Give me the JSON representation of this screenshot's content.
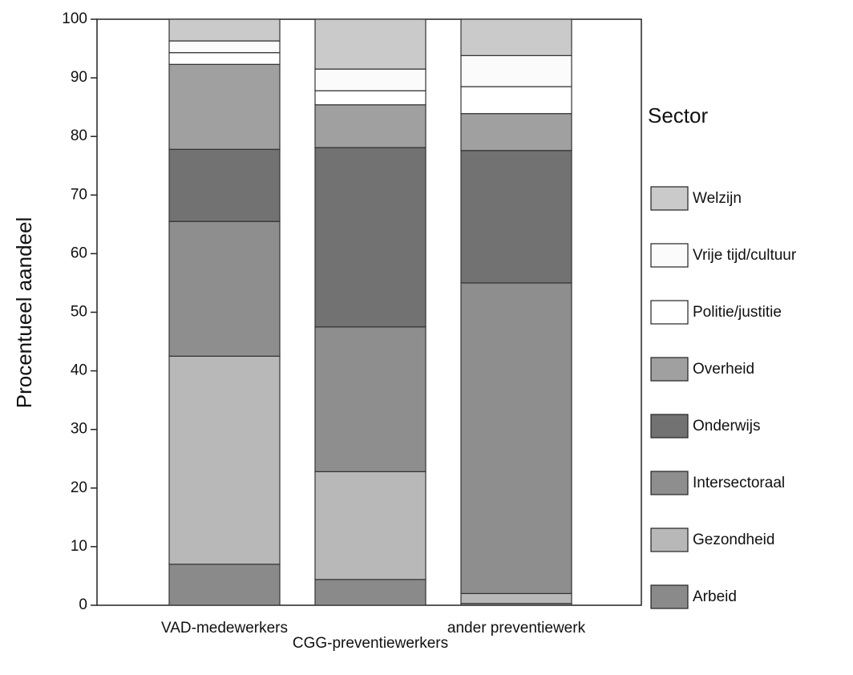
{
  "chart_data": {
    "type": "stacked_bar",
    "y_label": "Procentueel aandeel",
    "categories": [
      "VAD-medewerkers",
      "CGG-preventiewerkers",
      "ander preventiewerk"
    ],
    "legend_title": "Sector",
    "series": [
      {
        "name": "Arbeid",
        "color": "#8a8a8a",
        "values": [
          7,
          4.4,
          0.3
        ]
      },
      {
        "name": "Gezondheid",
        "color": "#b8b8b8",
        "values": [
          35.5,
          18.4,
          1.7
        ]
      },
      {
        "name": "Intersectoraal",
        "color": "#8e8e8e",
        "values": [
          23,
          24.7,
          53
        ]
      },
      {
        "name": "Onderwijs",
        "color": "#727272",
        "values": [
          12.3,
          30.6,
          22.6
        ]
      },
      {
        "name": "Overheid",
        "color": "#a0a0a0",
        "values": [
          14.5,
          7.3,
          6.3
        ]
      },
      {
        "name": "Politie/justitie",
        "color": "#ffffff",
        "values": [
          2,
          2.4,
          4.6
        ]
      },
      {
        "name": "Vrije tijd/cultuur",
        "color": "#fbfbfb",
        "values": [
          2,
          3.7,
          5.3
        ]
      },
      {
        "name": "Welzijn",
        "color": "#cacaca",
        "values": [
          3.7,
          8.5,
          6.2
        ]
      }
    ],
    "ylim": [
      0,
      100
    ],
    "yticks": [
      0,
      10,
      20,
      30,
      40,
      50,
      60,
      70,
      80,
      90,
      100
    ]
  }
}
